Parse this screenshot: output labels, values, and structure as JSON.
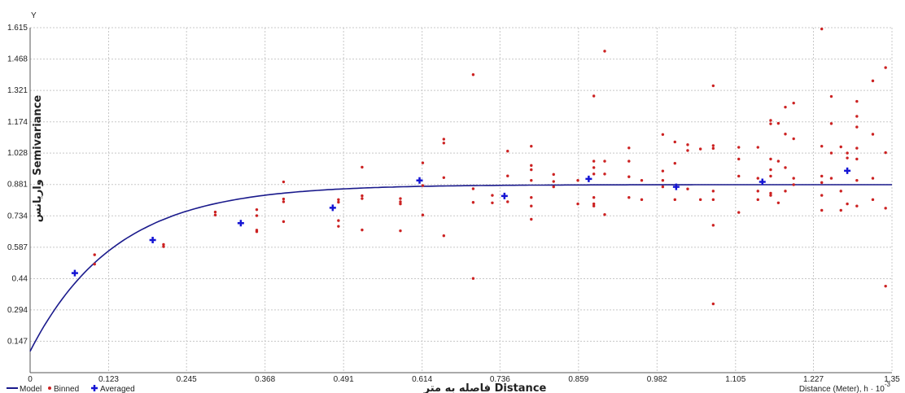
{
  "chart_data": {
    "type": "scatter",
    "y_axis_letter": "Y",
    "ylabel": "واریانس Semivariance",
    "xlabel": "فاصله به متر Distance",
    "x_unit_label": "Distance (Meter), h · 10",
    "x_unit_exponent": "-3",
    "xlim": [
      0,
      1.35
    ],
    "ylim": [
      0,
      1.615
    ],
    "x_ticks": [
      "0",
      "0.123",
      "0.245",
      "0.368",
      "0.491",
      "0.614",
      "0.736",
      "0.859",
      "0.982",
      "1.105",
      "1.227",
      "1.35"
    ],
    "y_ticks": [
      "0.147",
      "0.294",
      "0.44",
      "0.587",
      "0.734",
      "0.881",
      "1.028",
      "1.174",
      "1.321",
      "1.468",
      "1.615"
    ],
    "grid": true,
    "legend": [
      "Model",
      "Binned",
      "Averaged"
    ],
    "colors": {
      "model": "#1a1a8c",
      "binned": "#cc2222",
      "averaged": "#1515d4",
      "grid": "#c8c8c8"
    },
    "model": {
      "nugget": 0.1,
      "partial_sill": 0.78,
      "range": 0.4
    },
    "series": [
      {
        "name": "Binned",
        "points": [
          [
            0.101,
            0.552
          ],
          [
            0.101,
            0.508
          ],
          [
            0.209,
            0.6
          ],
          [
            0.209,
            0.59
          ],
          [
            0.29,
            0.752
          ],
          [
            0.29,
            0.738
          ],
          [
            0.355,
            0.763
          ],
          [
            0.355,
            0.735
          ],
          [
            0.355,
            0.66
          ],
          [
            0.355,
            0.667
          ],
          [
            0.397,
            0.893
          ],
          [
            0.397,
            0.813
          ],
          [
            0.397,
            0.8
          ],
          [
            0.397,
            0.707
          ],
          [
            0.483,
            0.81
          ],
          [
            0.483,
            0.798
          ],
          [
            0.483,
            0.712
          ],
          [
            0.483,
            0.685
          ],
          [
            0.52,
            0.962
          ],
          [
            0.52,
            0.828
          ],
          [
            0.52,
            0.815
          ],
          [
            0.52,
            0.668
          ],
          [
            0.58,
            0.815
          ],
          [
            0.58,
            0.8
          ],
          [
            0.58,
            0.79
          ],
          [
            0.58,
            0.664
          ],
          [
            0.615,
            0.982
          ],
          [
            0.615,
            0.876
          ],
          [
            0.615,
            0.738
          ],
          [
            0.648,
            1.093
          ],
          [
            0.648,
            1.075
          ],
          [
            0.648,
            0.913
          ],
          [
            0.648,
            0.641
          ],
          [
            0.694,
            1.395
          ],
          [
            0.694,
            0.441
          ],
          [
            0.694,
            0.797
          ],
          [
            0.694,
            0.861
          ],
          [
            0.724,
            0.83
          ],
          [
            0.724,
            0.795
          ],
          [
            0.748,
            1.037
          ],
          [
            0.748,
            0.921
          ],
          [
            0.748,
            0.8
          ],
          [
            0.785,
            1.06
          ],
          [
            0.785,
            0.97
          ],
          [
            0.785,
            0.95
          ],
          [
            0.785,
            0.9
          ],
          [
            0.785,
            0.82
          ],
          [
            0.785,
            0.78
          ],
          [
            0.785,
            0.718
          ],
          [
            0.82,
            0.928
          ],
          [
            0.82,
            0.895
          ],
          [
            0.82,
            0.87
          ],
          [
            0.858,
            0.9
          ],
          [
            0.858,
            0.79
          ],
          [
            0.883,
            1.295
          ],
          [
            0.883,
            0.99
          ],
          [
            0.883,
            0.96
          ],
          [
            0.883,
            0.93
          ],
          [
            0.883,
            0.82
          ],
          [
            0.883,
            0.78
          ],
          [
            0.883,
            0.79
          ],
          [
            0.9,
            1.505
          ],
          [
            0.9,
            0.99
          ],
          [
            0.9,
            0.93
          ],
          [
            0.9,
            0.74
          ],
          [
            0.938,
            1.052
          ],
          [
            0.938,
            0.99
          ],
          [
            0.938,
            0.917
          ],
          [
            0.938,
            0.82
          ],
          [
            0.958,
            0.9
          ],
          [
            0.958,
            0.81
          ],
          [
            0.991,
            1.115
          ],
          [
            0.991,
            0.944
          ],
          [
            0.991,
            0.9
          ],
          [
            0.991,
            0.87
          ],
          [
            1.01,
            1.08
          ],
          [
            1.01,
            0.98
          ],
          [
            1.01,
            0.81
          ],
          [
            1.03,
            1.067
          ],
          [
            1.03,
            1.04
          ],
          [
            1.03,
            0.86
          ],
          [
            1.05,
            1.047
          ],
          [
            1.05,
            0.81
          ],
          [
            1.07,
            1.343
          ],
          [
            1.07,
            1.063
          ],
          [
            1.07,
            1.05
          ],
          [
            1.07,
            0.85
          ],
          [
            1.07,
            0.81
          ],
          [
            1.07,
            0.69
          ],
          [
            1.07,
            0.322
          ],
          [
            1.11,
            1.055
          ],
          [
            1.11,
            1.0
          ],
          [
            1.11,
            0.92
          ],
          [
            1.11,
            0.75
          ],
          [
            1.14,
            1.055
          ],
          [
            1.14,
            0.91
          ],
          [
            1.14,
            0.85
          ],
          [
            1.14,
            0.81
          ],
          [
            1.16,
            1.181
          ],
          [
            1.16,
            1.165
          ],
          [
            1.16,
            1.0
          ],
          [
            1.16,
            0.95
          ],
          [
            1.16,
            0.92
          ],
          [
            1.16,
            0.84
          ],
          [
            1.16,
            0.83
          ],
          [
            1.172,
            1.167
          ],
          [
            1.172,
            0.99
          ],
          [
            1.172,
            0.795
          ],
          [
            1.183,
            1.243
          ],
          [
            1.183,
            1.117
          ],
          [
            1.183,
            0.96
          ],
          [
            1.183,
            0.85
          ],
          [
            1.196,
            1.262
          ],
          [
            1.196,
            1.095
          ],
          [
            1.196,
            0.91
          ],
          [
            1.196,
            0.88
          ],
          [
            1.24,
            1.609
          ],
          [
            1.24,
            1.06
          ],
          [
            1.24,
            0.92
          ],
          [
            1.24,
            0.89
          ],
          [
            1.24,
            0.83
          ],
          [
            1.24,
            0.76
          ],
          [
            1.255,
            1.293
          ],
          [
            1.255,
            1.166
          ],
          [
            1.255,
            1.028
          ],
          [
            1.255,
            0.91
          ],
          [
            1.27,
            1.057
          ],
          [
            1.27,
            0.85
          ],
          [
            1.27,
            0.76
          ],
          [
            1.28,
            1.028
          ],
          [
            1.28,
            1.005
          ],
          [
            1.28,
            0.79
          ],
          [
            1.295,
            1.27
          ],
          [
            1.295,
            1.2
          ],
          [
            1.295,
            1.15
          ],
          [
            1.295,
            1.051
          ],
          [
            1.295,
            1.0
          ],
          [
            1.295,
            0.9
          ],
          [
            1.295,
            0.78
          ],
          [
            1.32,
            1.366
          ],
          [
            1.32,
            1.116
          ],
          [
            1.32,
            0.91
          ],
          [
            1.32,
            0.81
          ],
          [
            1.34,
            1.428
          ],
          [
            1.34,
            1.03
          ],
          [
            1.34,
            0.77
          ],
          [
            1.34,
            0.405
          ]
        ]
      },
      {
        "name": "Averaged",
        "points": [
          [
            0.07,
            0.466
          ],
          [
            0.192,
            0.621
          ],
          [
            0.33,
            0.7
          ],
          [
            0.474,
            0.772
          ],
          [
            0.61,
            0.9
          ],
          [
            0.743,
            0.827
          ],
          [
            0.875,
            0.907
          ],
          [
            1.012,
            0.87
          ],
          [
            1.147,
            0.893
          ],
          [
            1.28,
            0.945
          ]
        ]
      }
    ]
  }
}
